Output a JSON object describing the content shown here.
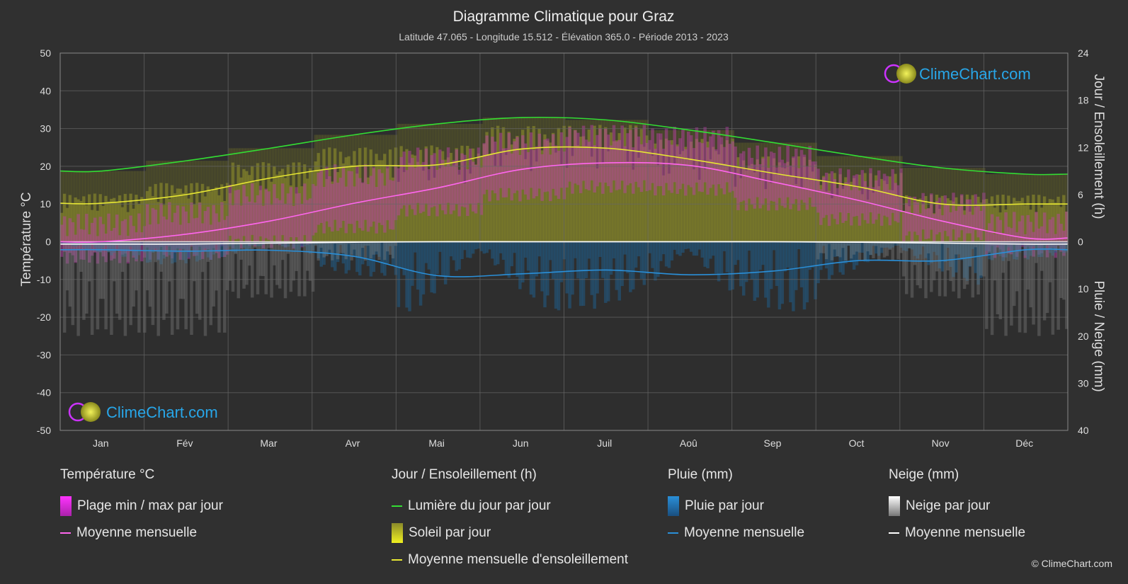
{
  "header": {
    "title": "Diagramme Climatique pour Graz",
    "subtitle": "Latitude 47.065 - Longitude 15.512 - Élévation 365.0 - Période 2013 - 2023"
  },
  "brand": {
    "name": "ClimeChart.com",
    "copyright": "© ClimeChart.com"
  },
  "chart_data": {
    "type": "line",
    "months": [
      "Jan",
      "Fév",
      "Mar",
      "Avr",
      "Mai",
      "Jun",
      "Juil",
      "Aoû",
      "Sep",
      "Oct",
      "Nov",
      "Déc"
    ],
    "axes": {
      "left": {
        "label": "Température °C",
        "min": -50,
        "max": 50,
        "ticks": [
          50,
          40,
          30,
          20,
          10,
          0,
          -10,
          -20,
          -30,
          -40,
          -50
        ]
      },
      "right_top": {
        "label": "Jour / Ensoleillement (h)",
        "min": 0,
        "max": 24,
        "ticks": [
          24,
          18,
          12,
          6,
          0
        ]
      },
      "right_bottom": {
        "label": "Pluie / Neige (mm)",
        "min": 0,
        "max": 40,
        "ticks": [
          10,
          20,
          30,
          40
        ]
      }
    },
    "series": [
      {
        "name": "Lumière du jour par jour",
        "unit": "h",
        "color": "#33dd33",
        "values": [
          9.0,
          10.3,
          11.9,
          13.6,
          15.0,
          15.8,
          15.5,
          14.2,
          12.6,
          10.9,
          9.4,
          8.6
        ]
      },
      {
        "name": "Moyenne mensuelle d'ensoleillement",
        "unit": "h",
        "color": "#e6e633",
        "values": [
          4.9,
          6.0,
          8.1,
          9.6,
          9.8,
          11.8,
          11.9,
          10.5,
          8.7,
          7.0,
          4.8,
          4.8
        ]
      },
      {
        "name": "Moyenne mensuelle",
        "group": "Température °C",
        "unit": "°C",
        "color": "#ff66ee",
        "values": [
          0.0,
          2.0,
          5.5,
          10.2,
          14.3,
          19.2,
          20.9,
          20.2,
          15.8,
          11.0,
          5.5,
          1.0
        ]
      },
      {
        "name": "Moyenne mensuelle",
        "group": "Pluie (mm)",
        "unit": "mm",
        "color": "#2a8fd8",
        "values": [
          1.7,
          2.0,
          1.8,
          3.1,
          7.2,
          6.8,
          6.0,
          7.0,
          6.2,
          4.0,
          4.0,
          1.7
        ]
      },
      {
        "name": "Moyenne mensuelle",
        "group": "Neige (mm)",
        "unit": "mm",
        "color": "#ffffff",
        "values": [
          0.5,
          0.5,
          0.3,
          0.1,
          0.0,
          0.0,
          0.0,
          0.0,
          0.0,
          0.1,
          0.3,
          0.5
        ]
      }
    ],
    "ranges": {
      "temp_daily_max": [
        4.5,
        7.5,
        12.5,
        17.5,
        22.0,
        26.0,
        28.0,
        27.5,
        22.5,
        16.5,
        10.0,
        5.0
      ],
      "temp_daily_min": [
        -4.0,
        -3.0,
        0.0,
        4.0,
        8.5,
        12.5,
        14.5,
        14.0,
        10.0,
        6.0,
        1.5,
        -2.5
      ]
    }
  },
  "legend": {
    "temperature": {
      "title": "Température °C",
      "items": [
        "Plage min / max par jour",
        "Moyenne mensuelle"
      ]
    },
    "sun": {
      "title": "Jour / Ensoleillement (h)",
      "items": [
        "Lumière du jour par jour",
        "Soleil par jour",
        "Moyenne mensuelle d'ensoleillement"
      ]
    },
    "rain": {
      "title": "Pluie (mm)",
      "items": [
        "Pluie par jour",
        "Moyenne mensuelle"
      ]
    },
    "snow": {
      "title": "Neige (mm)",
      "items": [
        "Neige par jour",
        "Moyenne mensuelle"
      ]
    }
  }
}
